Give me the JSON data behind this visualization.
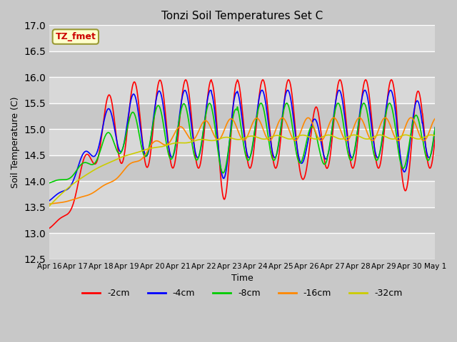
{
  "title": "Tonzi Soil Temperatures Set C",
  "xlabel": "Time",
  "ylabel": "Soil Temperature (C)",
  "ylim": [
    12.5,
    17.0
  ],
  "yticks": [
    12.5,
    13.0,
    13.5,
    14.0,
    14.5,
    15.0,
    15.5,
    16.0,
    16.5,
    17.0
  ],
  "xtick_labels": [
    "Apr 16",
    "Apr 17",
    "Apr 18",
    "Apr 19",
    "Apr 20",
    "Apr 21",
    "Apr 22",
    "Apr 23",
    "Apr 24",
    "Apr 25",
    "Apr 26",
    "Apr 27",
    "Apr 28",
    "Apr 29",
    "Apr 30",
    "May 1"
  ],
  "annotation_text": "TZ_fmet",
  "annotation_color": "#cc0000",
  "annotation_bg": "#ffffcc",
  "line_colors": [
    "#ff0000",
    "#0000ff",
    "#00cc00",
    "#ff8800",
    "#cccc00"
  ],
  "line_labels": [
    "-2cm",
    "-4cm",
    "-8cm",
    "-16cm",
    "-32cm"
  ],
  "fig_facecolor": "#c8c8c8",
  "plot_facecolor": "#d8d8d8",
  "band_colors": [
    "#d8d8d8",
    "#c8c8c8"
  ]
}
